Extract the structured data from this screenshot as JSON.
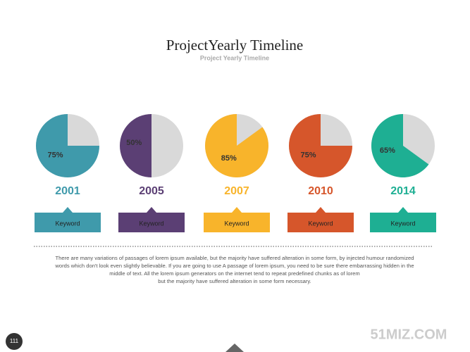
{
  "title": "ProjectYearly Timeline",
  "subtitle": "Project Yearly Timeline",
  "items": [
    {
      "value": 75,
      "value_label": "75%",
      "year": "2001",
      "keyword": "Keyword",
      "color": "#3f9aab"
    },
    {
      "value": 50,
      "value_label": "50%",
      "year": "2005",
      "keyword": "Keyword",
      "color": "#5b3f74"
    },
    {
      "value": 85,
      "value_label": "85%",
      "year": "2007",
      "keyword": "Keyword",
      "color": "#f8b42b"
    },
    {
      "value": 75,
      "value_label": "75%",
      "year": "2010",
      "keyword": "Keyword",
      "color": "#d6562b"
    },
    {
      "value": 65,
      "value_label": "65%",
      "year": "2014",
      "keyword": "Keyword",
      "color": "#1eaf93"
    }
  ],
  "paragraph": [
    "There are many variations of passages of lorem ipsum available, but the majority have suffered alteration in some form, by injected humour randomized",
    "words which don't look even slightly believable. If you are going to use A passage of lorem ipsum, you need to be sure there embarrassing hidden in the",
    "middle of text. All the lorem ipsum generators on the internet tend to repeat predefined chunks as of lorem",
    "but the majority have suffered alteration in some form necessary."
  ],
  "page_number": "111",
  "watermark": "51MIZ.COM"
}
